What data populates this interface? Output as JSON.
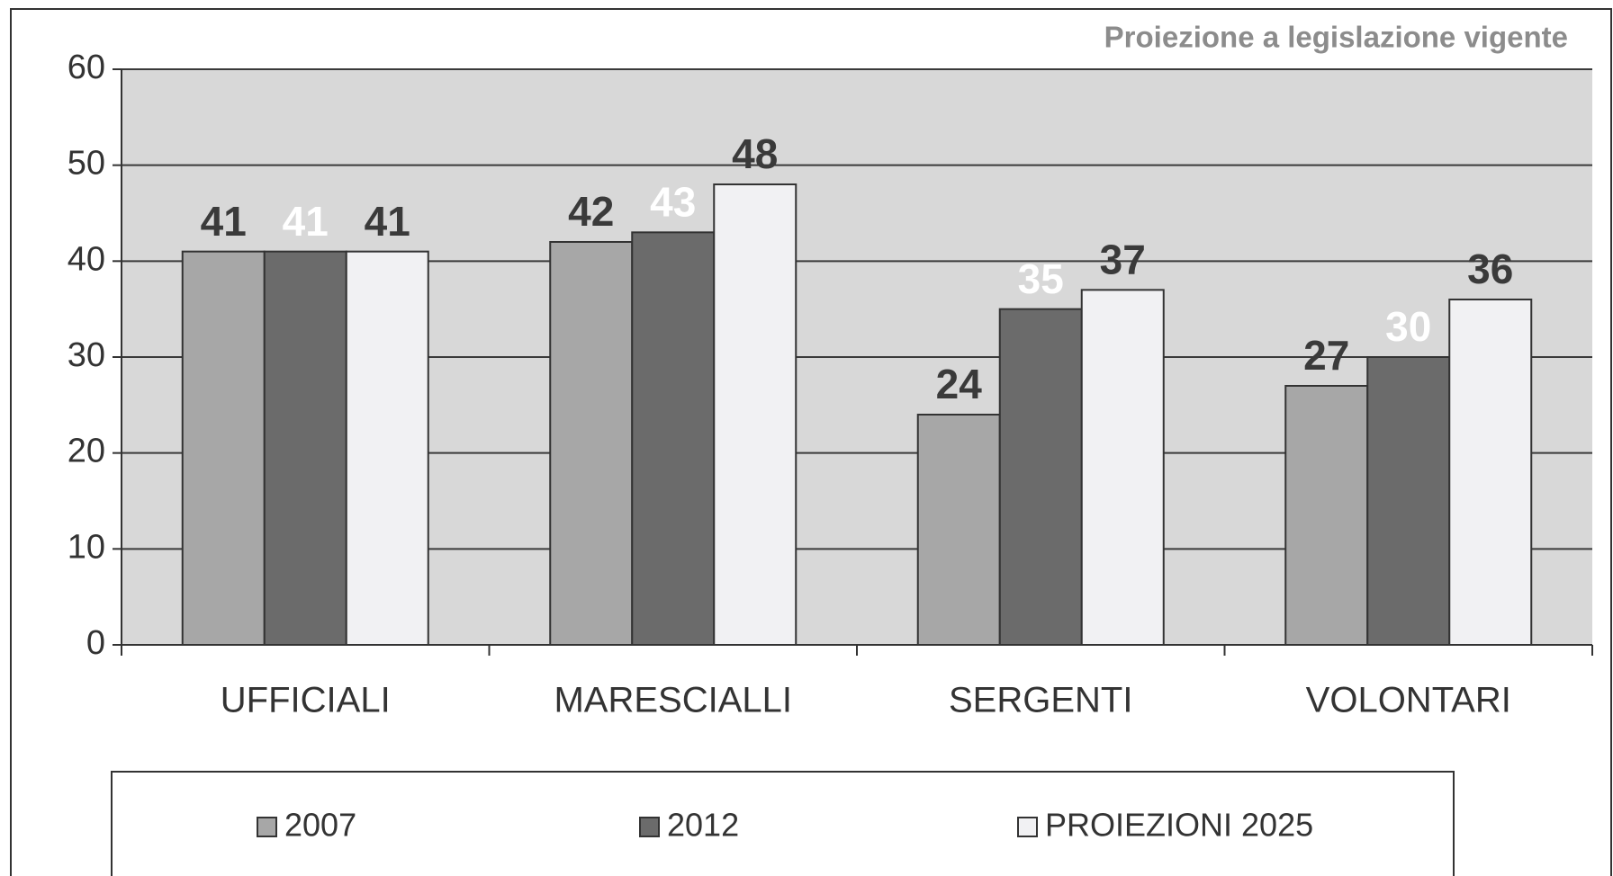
{
  "chart_data": {
    "type": "bar",
    "title": "Proiezione a legislazione vigente",
    "categories": [
      "UFFICIALI",
      "MARESCIALLI",
      "SERGENTI",
      "VOLONTARI"
    ],
    "series": [
      {
        "name": "2007",
        "color": "#a7a7a7",
        "label_color": "#3a3a3a",
        "values": [
          41,
          42,
          24,
          27
        ]
      },
      {
        "name": "2012",
        "color": "#6b6b6b",
        "label_color": "#ffffff",
        "values": [
          41,
          43,
          35,
          30
        ]
      },
      {
        "name": "PROIEZIONI 2025",
        "color": "#f1f1f3",
        "label_color": "#3a3a3a",
        "values": [
          41,
          48,
          37,
          36
        ]
      }
    ],
    "ylim": [
      0,
      60
    ],
    "yticks": [
      0,
      10,
      20,
      30,
      40,
      50,
      60
    ],
    "grid": true,
    "legend": "bottom"
  }
}
